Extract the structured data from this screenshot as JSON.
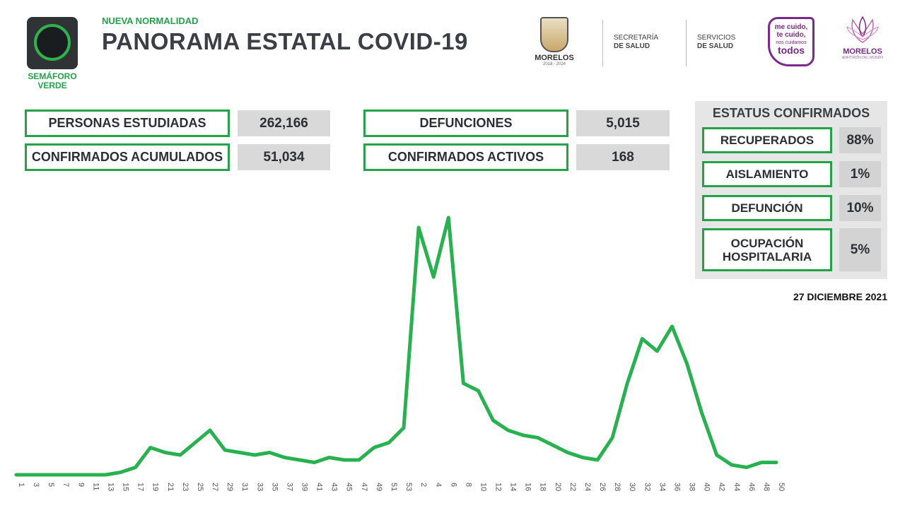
{
  "header": {
    "semaforo_label_1": "SEMÁFORO",
    "semaforo_label_2": "VERDE",
    "kicker": "NUEVA NORMALIDAD",
    "title": "PANORAMA ESTATAL COVID-19"
  },
  "logos": {
    "morelos_name": "MORELOS",
    "morelos_years": "2018 - 2024",
    "secretaria_line1": "SECRETARÍA",
    "secretaria_line2": "DE SALUD",
    "servicios_line1": "SERVICIOS",
    "servicios_line2": "DE SALUD",
    "campaign_line1": "me cuido,",
    "campaign_line2": "te cuido,",
    "campaign_line3": "nos cuidamos",
    "campaign_line4": "todos",
    "anfitrion_name": "MORELOS",
    "anfitrion_sub": "ANFITRIÓN DEL MUNDO"
  },
  "stats": [
    {
      "label": "PERSONAS ESTUDIADAS",
      "value": "262,166"
    },
    {
      "label": "CONFIRMADOS ACUMULADOS",
      "value": "51,034"
    },
    {
      "label": "DEFUNCIONES",
      "value": "5,015"
    },
    {
      "label": "CONFIRMADOS ACTIVOS",
      "value": "168"
    }
  ],
  "estatus": {
    "title": "ESTATUS CONFIRMADOS",
    "items": [
      {
        "label": "RECUPERADOS",
        "value": "88%"
      },
      {
        "label": "AISLAMIENTO",
        "value": "1%"
      },
      {
        "label": "DEFUNCIÓN",
        "value": "10%"
      },
      {
        "label": "OCUPACIÓN HOSPITALARIA",
        "value": "5%"
      }
    ]
  },
  "date": "27 DICIEMBRE 2021",
  "colors": {
    "accent": "#23a24a",
    "line": "#27b14f",
    "campaign": "#7a2a8a"
  },
  "chart_data": {
    "type": "line",
    "title": "",
    "xlabel": "",
    "ylabel": "",
    "grid": false,
    "x": [
      "1",
      "3",
      "5",
      "7",
      "9",
      "11",
      "13",
      "15",
      "17",
      "19",
      "21",
      "23",
      "25",
      "27",
      "29",
      "31",
      "33",
      "35",
      "37",
      "39",
      "41",
      "43",
      "45",
      "47",
      "49",
      "51",
      "53",
      "2",
      "4",
      "6",
      "8",
      "10",
      "12",
      "14",
      "16",
      "18",
      "20",
      "22",
      "24",
      "26",
      "28",
      "30",
      "32",
      "34",
      "36",
      "38",
      "40",
      "42",
      "44",
      "46",
      "48",
      "50"
    ],
    "values": [
      0,
      0,
      0,
      0,
      0,
      0,
      0,
      1,
      3,
      11,
      9,
      8,
      13,
      18,
      10,
      9,
      8,
      9,
      7,
      6,
      5,
      7,
      6,
      6,
      11,
      13,
      19,
      100,
      80,
      104,
      37,
      34,
      22,
      18,
      16,
      15,
      12,
      9,
      7,
      6,
      15,
      37,
      55,
      50,
      60,
      45,
      25,
      8,
      4,
      3,
      5,
      5
    ]
  }
}
